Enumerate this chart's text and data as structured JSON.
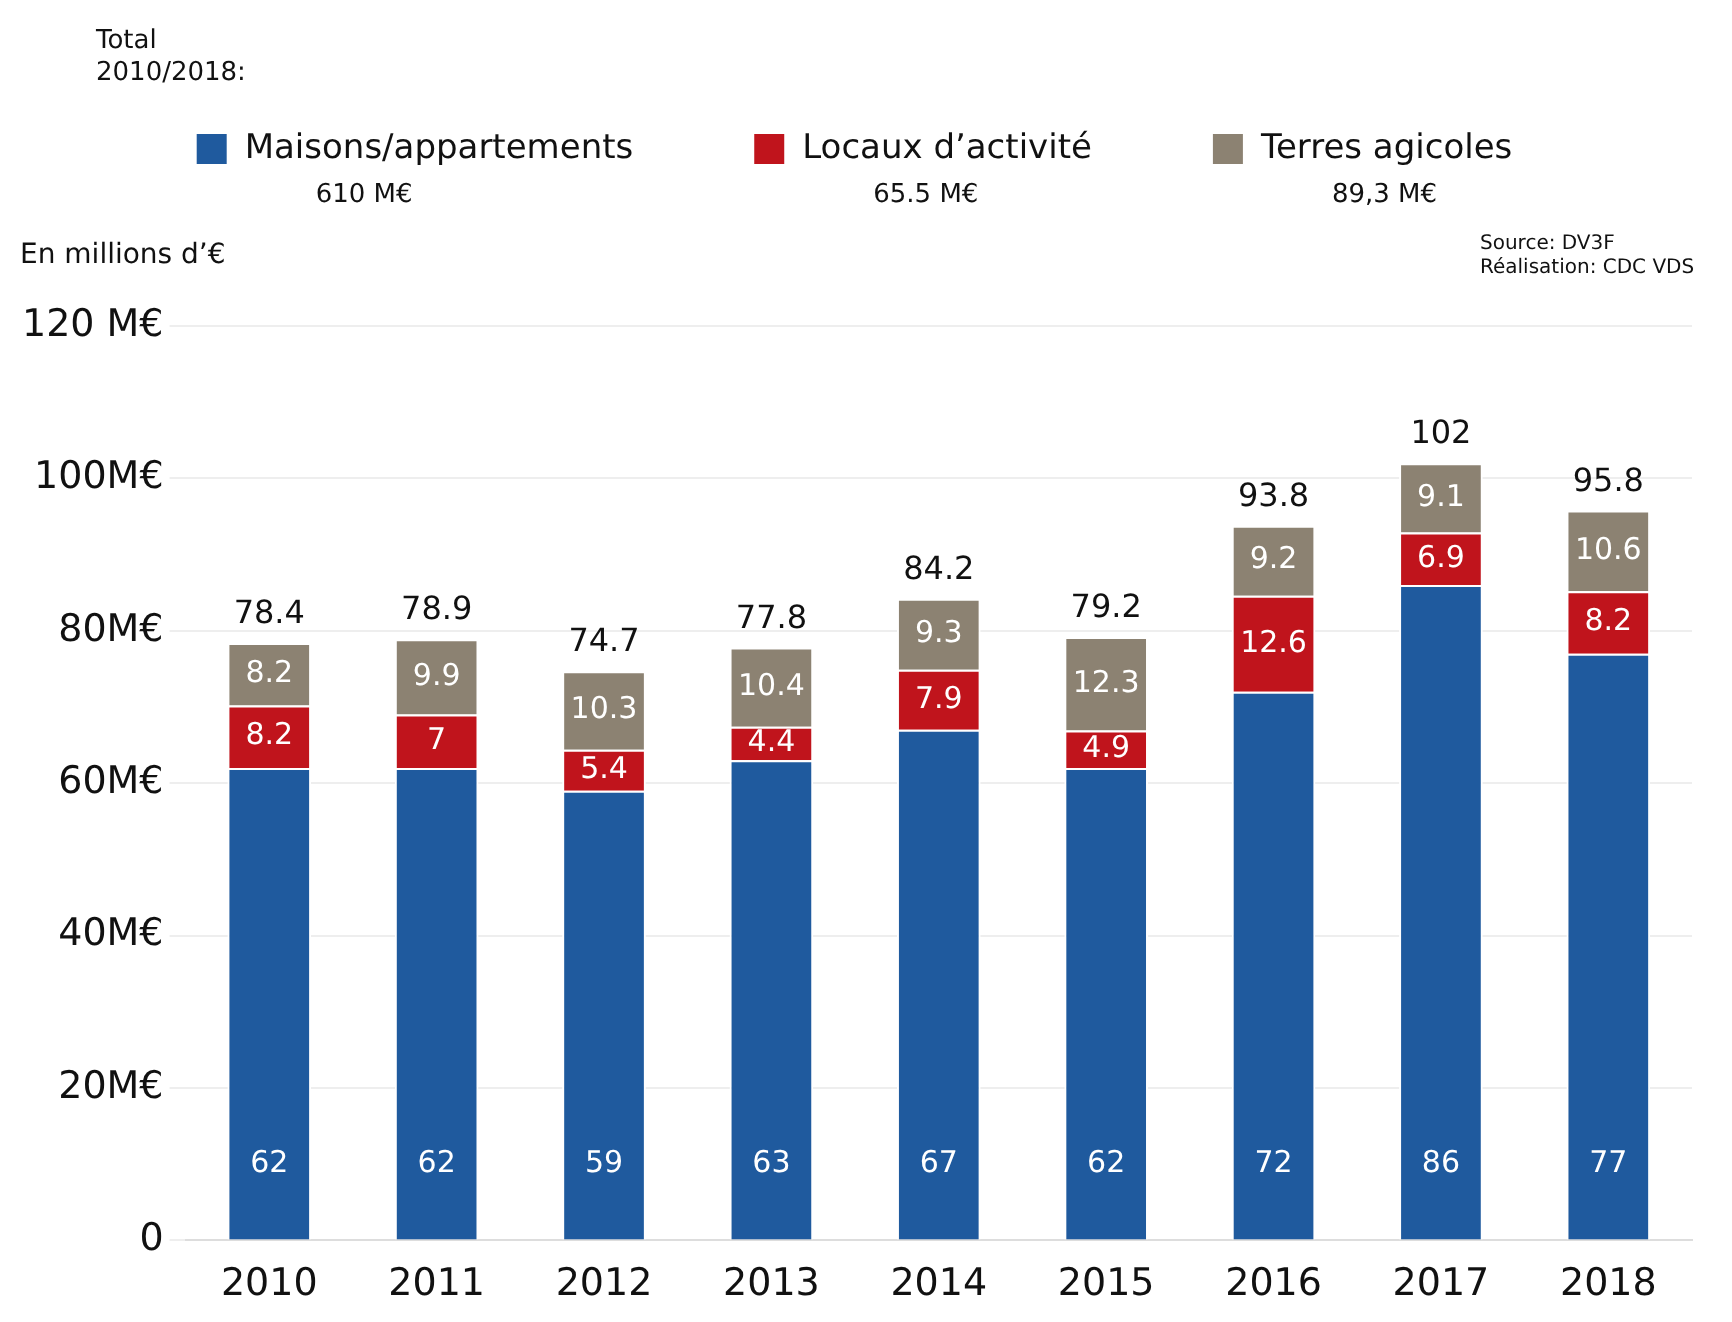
{
  "chart_data": {
    "type": "bar",
    "stacked": true,
    "categories": [
      "2010",
      "2011",
      "2012",
      "2013",
      "2014",
      "2015",
      "2016",
      "2017",
      "2018"
    ],
    "series": [
      {
        "name": "Maisons/appartements",
        "color": "#1f5a9e",
        "values": [
          62,
          62,
          59,
          63,
          67,
          62,
          72,
          86,
          77
        ]
      },
      {
        "name": "Locaux d’activité",
        "color": "#c0141c",
        "values": [
          8.2,
          7,
          5.4,
          4.4,
          7.9,
          4.9,
          12.6,
          6.9,
          8.2
        ]
      },
      {
        "name": "Terres agicoles",
        "color": "#8c8272",
        "values": [
          8.2,
          9.9,
          10.3,
          10.4,
          9.3,
          12.3,
          9.2,
          9.1,
          10.6
        ]
      }
    ],
    "totals": [
      "78.4",
      "78.9",
      "74.7",
      "77.8",
      "84.2",
      "79.2",
      "93.8",
      "102",
      "95.8"
    ],
    "data_labels": true,
    "ylabel": "En millions d’€",
    "ylim": [
      0,
      120
    ],
    "yticks": [
      {
        "value": 0,
        "label": "0"
      },
      {
        "value": 20,
        "label": "20M€"
      },
      {
        "value": 40,
        "label": "40M€"
      },
      {
        "value": 60,
        "label": "60M€"
      },
      {
        "value": 80,
        "label": "80M€"
      },
      {
        "value": 100,
        "label": "100M€"
      },
      {
        "value": 120,
        "label": "120 M€"
      }
    ],
    "grid": "y",
    "legend": "top",
    "annotations": [
      "Total 2010/2018:",
      "610 M€",
      "65.5 M€",
      "89,3 M€",
      "Source: DV3F",
      "Réalisation: CDC VDS"
    ]
  }
}
